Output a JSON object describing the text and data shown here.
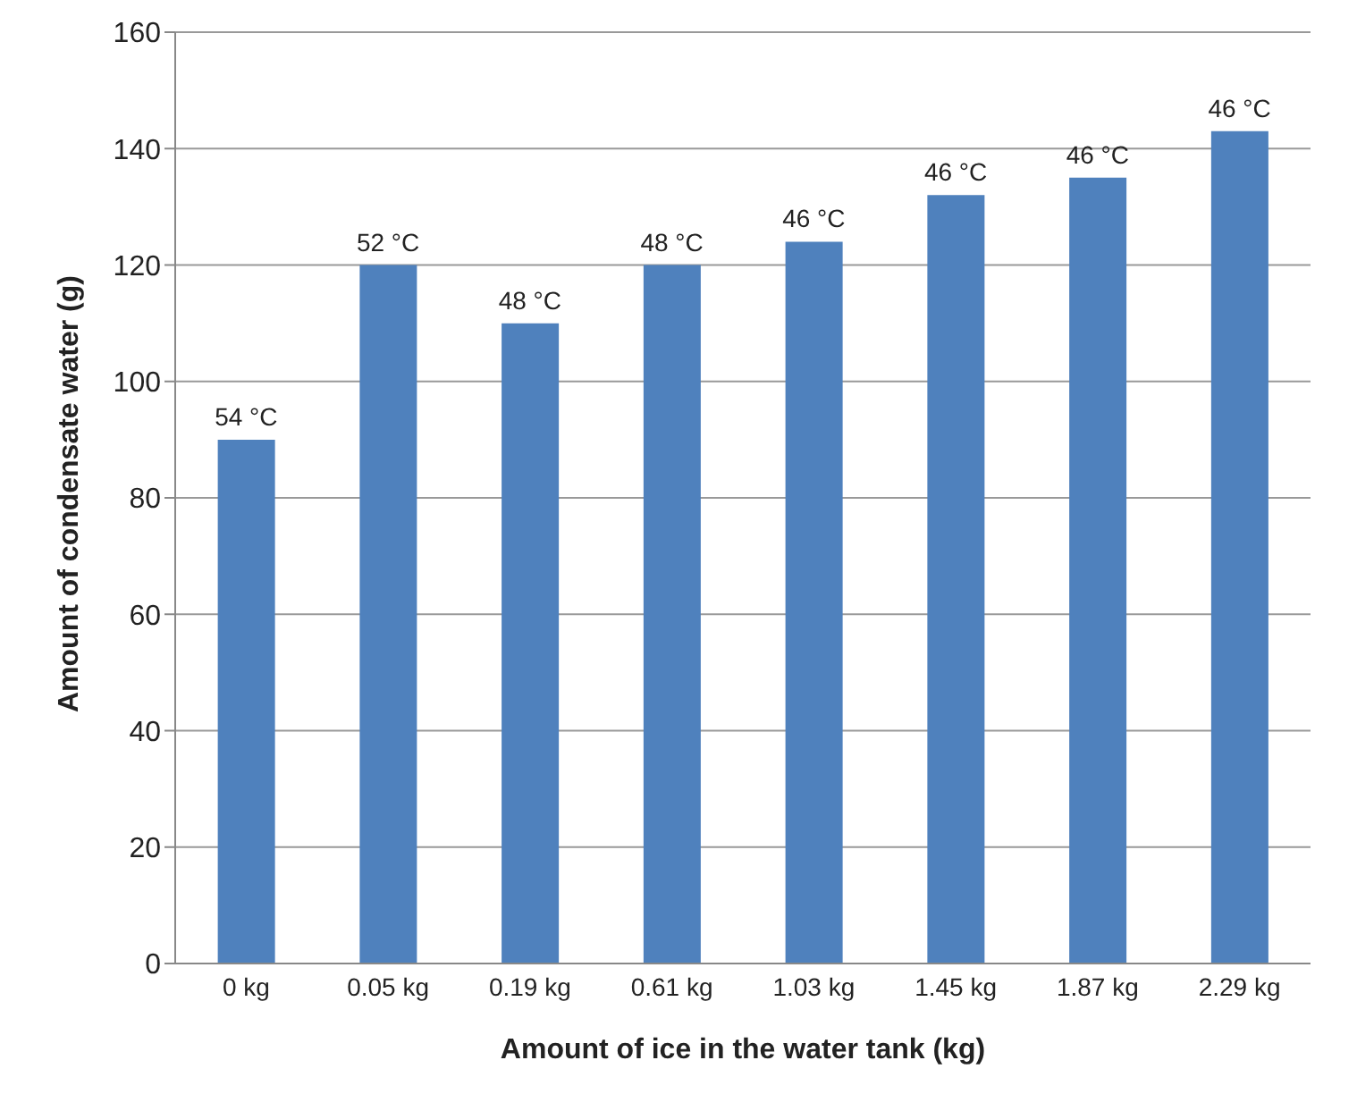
{
  "chart_data": {
    "type": "bar",
    "xlabel": "Amount of ice in the water tank (kg)",
    "ylabel": "Amount of condensate water (g)",
    "categories": [
      "0 kg",
      "0.05 kg",
      "0.19 kg",
      "0.61 kg",
      "1.03 kg",
      "1.45 kg",
      "1.87 kg",
      "2.29 kg"
    ],
    "values": [
      90,
      120,
      110,
      120,
      124,
      132,
      135,
      143
    ],
    "annotations": [
      {
        "text": "54 °C",
        "x": "0 kg",
        "y": 90
      },
      {
        "text": "52 °C",
        "x": "0.05 kg",
        "y": 120
      },
      {
        "text": "48 °C",
        "x": "0.19 kg",
        "y": 110
      },
      {
        "text": "48 °C",
        "x": "0.61 kg",
        "y": 120
      },
      {
        "text": "46 °C",
        "x": "1.03 kg",
        "y": 124
      },
      {
        "text": "46 °C",
        "x": "1.45 kg",
        "y": 132
      },
      {
        "text": "46 °C",
        "x": "1.87 kg",
        "y": 135
      },
      {
        "text": "46 °C",
        "x": "2.29 kg",
        "y": 143
      }
    ],
    "color": "#4f81bd",
    "ylim": [
      0,
      160
    ],
    "yticks": [
      0,
      20,
      40,
      60,
      80,
      100,
      120,
      140,
      160
    ],
    "grid": "y",
    "legend": false
  }
}
